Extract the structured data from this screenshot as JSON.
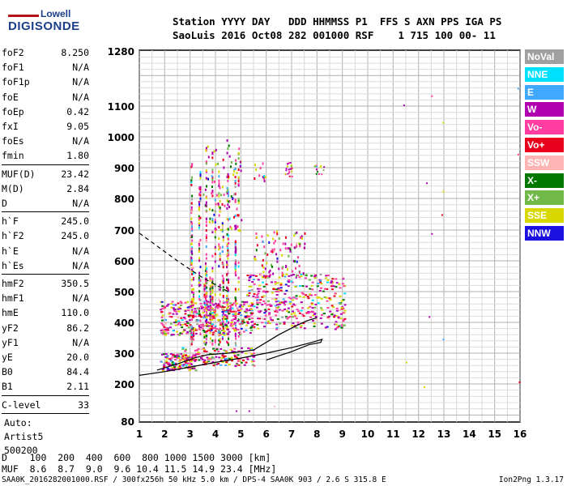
{
  "logo": {
    "line1": "Lowell",
    "line2": "DIGISONDE"
  },
  "header": {
    "row1": "Station YYYY DAY   DDD HHMMSS P1  FFS S AXN PPS IGA PS",
    "row2": "SaoLuis 2016 Oct08 282 001000 RSF    1 715 100 00- 11"
  },
  "params": {
    "group1": [
      {
        "label": "foF2",
        "value": "8.250"
      },
      {
        "label": "foF1",
        "value": "N/A"
      },
      {
        "label": "foF1p",
        "value": "N/A"
      },
      {
        "label": "foE",
        "value": "N/A"
      },
      {
        "label": "foEp",
        "value": "0.42"
      },
      {
        "label": "fxI",
        "value": "9.05"
      },
      {
        "label": "foEs",
        "value": "N/A"
      },
      {
        "label": "fmin",
        "value": "1.80"
      }
    ],
    "group2": [
      {
        "label": "MUF(D)",
        "value": "23.42"
      },
      {
        "label": "M(D)",
        "value": "2.84"
      },
      {
        "label": "D",
        "value": "N/A"
      }
    ],
    "group3": [
      {
        "label": "h`F",
        "value": "245.0"
      },
      {
        "label": "h`F2",
        "value": "245.0"
      },
      {
        "label": "h`E",
        "value": "N/A"
      },
      {
        "label": "h`Es",
        "value": "N/A"
      }
    ],
    "group4": [
      {
        "label": "hmF2",
        "value": "350.5"
      },
      {
        "label": "hmF1",
        "value": "N/A"
      },
      {
        "label": "hmE",
        "value": "110.0"
      },
      {
        "label": "yF2",
        "value": "86.2"
      },
      {
        "label": "yF1",
        "value": "N/A"
      },
      {
        "label": "yE",
        "value": "20.0"
      },
      {
        "label": "B0",
        "value": "84.4"
      },
      {
        "label": "B1",
        "value": "2.11"
      }
    ],
    "clevel": {
      "label": "C-level",
      "value": "33"
    },
    "auto": [
      "Auto:",
      "Artist5",
      "500200"
    ]
  },
  "legend": [
    {
      "label": "NoVal",
      "color": "#a0a0a0"
    },
    {
      "label": "NNE",
      "color": "#00e0ff"
    },
    {
      "label": "E",
      "color": "#40a8ff"
    },
    {
      "label": "W",
      "color": "#b000b0"
    },
    {
      "label": "Vo-",
      "color": "#ff3ca0"
    },
    {
      "label": "Vo+",
      "color": "#e8001c"
    },
    {
      "label": "SSW",
      "color": "#ffb4b4"
    },
    {
      "label": "X-",
      "color": "#007800"
    },
    {
      "label": "X+",
      "color": "#70b848"
    },
    {
      "label": "SSE",
      "color": "#d8d800"
    },
    {
      "label": "NNW",
      "color": "#1a10e0"
    }
  ],
  "dmuf": {
    "row1": "D    100  200  400  600  800 1000 1500 3000 [km]",
    "row2": "MUF  8.6  8.7  9.0  9.6 10.4 11.5 14.9 23.4 [MHz]"
  },
  "footer": "SAA0K_2016282001000.RSF / 300fx256h 50 kHz 5.0 km / DPS-4 SAA0K 903 / 2.6 S 315.8 E",
  "version": "Ion2Png 1.3.17",
  "chart_data": {
    "type": "scatter",
    "title": "",
    "xlabel": "",
    "ylabel": "",
    "xlim": [
      1,
      16
    ],
    "ylim": [
      80,
      1280
    ],
    "x_ticks": [
      1,
      2,
      3,
      4,
      5,
      6,
      7,
      8,
      9,
      10,
      11,
      12,
      13,
      14,
      15,
      16
    ],
    "y_ticks": [
      80,
      200,
      300,
      400,
      500,
      600,
      700,
      800,
      900,
      1000,
      1100,
      1280
    ],
    "grid": true,
    "legend_position": "right",
    "echo_clusters": [
      {
        "name": "o-trace F-layer band",
        "x_range": [
          1.8,
          9.0
        ],
        "y_range": [
          240,
          1000
        ],
        "peak_x": [
          3.0,
          4.5
        ],
        "peak_y": [
          380,
          1000
        ]
      },
      {
        "name": "low trace",
        "x_range": [
          1.8,
          5.5
        ],
        "y_range": [
          240,
          320
        ]
      },
      {
        "name": "mid band",
        "x_range": [
          5.5,
          9.1
        ],
        "y_range": [
          330,
          560
        ]
      }
    ],
    "outlier_points": [
      {
        "x": 11.4,
        "y": 1105
      },
      {
        "x": 12.5,
        "y": 1135
      },
      {
        "x": 12.95,
        "y": 1048
      },
      {
        "x": 12.3,
        "y": 852
      },
      {
        "x": 12.95,
        "y": 825
      },
      {
        "x": 12.9,
        "y": 750
      },
      {
        "x": 12.5,
        "y": 690
      },
      {
        "x": 12.4,
        "y": 420
      },
      {
        "x": 12.95,
        "y": 347
      },
      {
        "x": 11.5,
        "y": 272
      },
      {
        "x": 12.2,
        "y": 192
      },
      {
        "x": 15.9,
        "y": 1160
      },
      {
        "x": 15.9,
        "y": 945
      },
      {
        "x": 15.95,
        "y": 208
      },
      {
        "x": 4.8,
        "y": 115
      },
      {
        "x": 5.3,
        "y": 115
      },
      {
        "x": 6.3,
        "y": 130
      }
    ],
    "profile_curves": [
      {
        "name": "dashed (o-mode)",
        "style": "dashed",
        "points": [
          [
            1,
            690
          ],
          [
            1.5,
            660
          ],
          [
            2,
            630
          ],
          [
            2.5,
            600
          ],
          [
            3,
            572
          ],
          [
            3.5,
            545
          ],
          [
            4,
            522
          ],
          [
            4.5,
            500
          ]
        ]
      },
      {
        "name": "solid (profile)",
        "style": "solid",
        "points": [
          [
            1,
            228
          ],
          [
            2,
            240
          ],
          [
            3,
            255
          ],
          [
            4,
            270
          ],
          [
            5,
            284
          ],
          [
            6,
            300
          ],
          [
            7,
            318
          ],
          [
            7.8,
            335
          ],
          [
            8.2,
            345
          ],
          [
            8.15,
            335
          ],
          [
            7.7,
            328
          ],
          [
            7,
            305
          ],
          [
            6,
            278
          ]
        ]
      },
      {
        "name": "solid (trace)",
        "style": "solid",
        "points": [
          [
            1.7,
            245
          ],
          [
            2.5,
            265
          ],
          [
            3.2,
            285
          ],
          [
            3.7,
            295
          ],
          [
            4.5,
            300
          ],
          [
            5.5,
            310
          ],
          [
            6.5,
            360
          ],
          [
            7.2,
            390
          ],
          [
            7.6,
            405
          ],
          [
            8.0,
            415
          ]
        ]
      }
    ]
  }
}
